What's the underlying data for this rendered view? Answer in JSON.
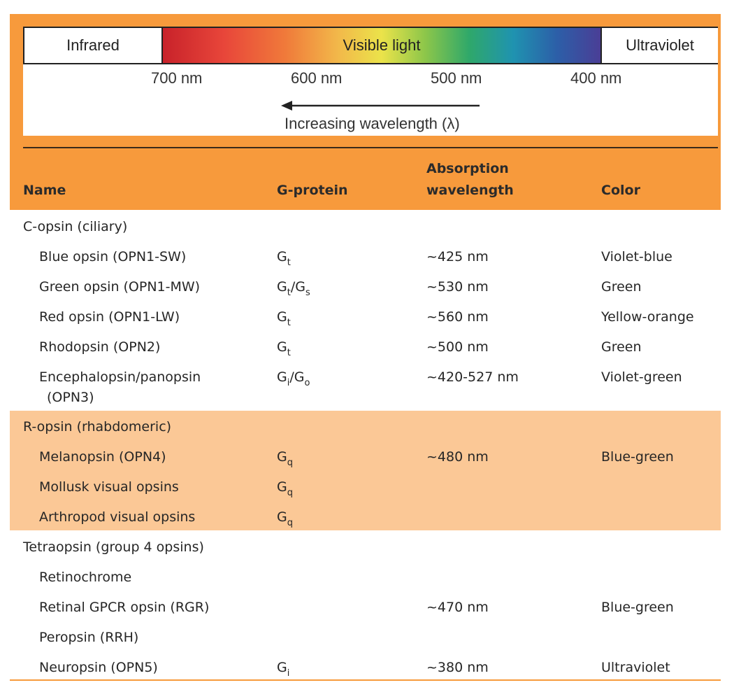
{
  "spectrum": {
    "infrared_label": "Infrared",
    "visible_label": "Visible light",
    "ultraviolet_label": "Ultraviolet",
    "ticks": [
      "700 nm",
      "600 nm",
      "500 nm",
      "400 nm"
    ],
    "arrow_label": "Increasing wavelength (λ)"
  },
  "table": {
    "headers": {
      "name": "Name",
      "gprotein": "G-protein",
      "absorption_line1": "Absorption",
      "absorption_line2": "wavelength",
      "color": "Color"
    },
    "groups": [
      {
        "label": "C-opsin (ciliary)",
        "rows": [
          {
            "name": "Blue opsin (OPN1-SW)",
            "g": [
              {
                "base": "G",
                "sub": "t"
              }
            ],
            "wave": "~425 nm",
            "color": "Violet-blue"
          },
          {
            "name": "Green opsin (OPN1-MW)",
            "g": [
              {
                "base": "G",
                "sub": "t"
              },
              {
                "sep": "/"
              },
              {
                "base": "G",
                "sub": "s"
              }
            ],
            "wave": "~530 nm",
            "color": "Green"
          },
          {
            "name": "Red opsin (OPN1-LW)",
            "g": [
              {
                "base": "G",
                "sub": "t"
              }
            ],
            "wave": "~560 nm",
            "color": "Yellow-orange"
          },
          {
            "name": "Rhodopsin (OPN2)",
            "g": [
              {
                "base": "G",
                "sub": "t"
              }
            ],
            "wave": "~500 nm",
            "color": "Green"
          },
          {
            "name": "Encephalopsin/panopsin",
            "name2": "(OPN3)",
            "g": [
              {
                "base": "G",
                "sub": "i"
              },
              {
                "sep": "/"
              },
              {
                "base": "G",
                "sub": "o"
              }
            ],
            "wave": "~420-527 nm",
            "color": "Violet-green"
          }
        ]
      },
      {
        "label": "R-opsin (rhabdomeric)",
        "rows": [
          {
            "name": "Melanopsin (OPN4)",
            "g": [
              {
                "base": "G",
                "sub": "q"
              }
            ],
            "wave": "~480 nm",
            "color": "Blue-green"
          },
          {
            "name": "Mollusk visual opsins",
            "g": [
              {
                "base": "G",
                "sub": "q"
              }
            ],
            "wave": "",
            "color": ""
          },
          {
            "name": "Arthropod visual opsins",
            "g": [
              {
                "base": "G",
                "sub": "q"
              }
            ],
            "wave": "",
            "color": ""
          }
        ]
      },
      {
        "label": "Tetraopsin (group 4 opsins)",
        "rows": [
          {
            "name": "Retinochrome",
            "g": [],
            "wave": "",
            "color": ""
          },
          {
            "name": "Retinal GPCR opsin (RGR)",
            "g": [],
            "wave": "~470 nm",
            "color": "Blue-green"
          },
          {
            "name": "Peropsin (RRH)",
            "g": [],
            "wave": "",
            "color": ""
          },
          {
            "name": "Neuropsin (OPN5)",
            "g": [
              {
                "base": "G",
                "sub": "i"
              }
            ],
            "wave": "~380 nm",
            "color": "Ultraviolet"
          }
        ]
      }
    ]
  }
}
